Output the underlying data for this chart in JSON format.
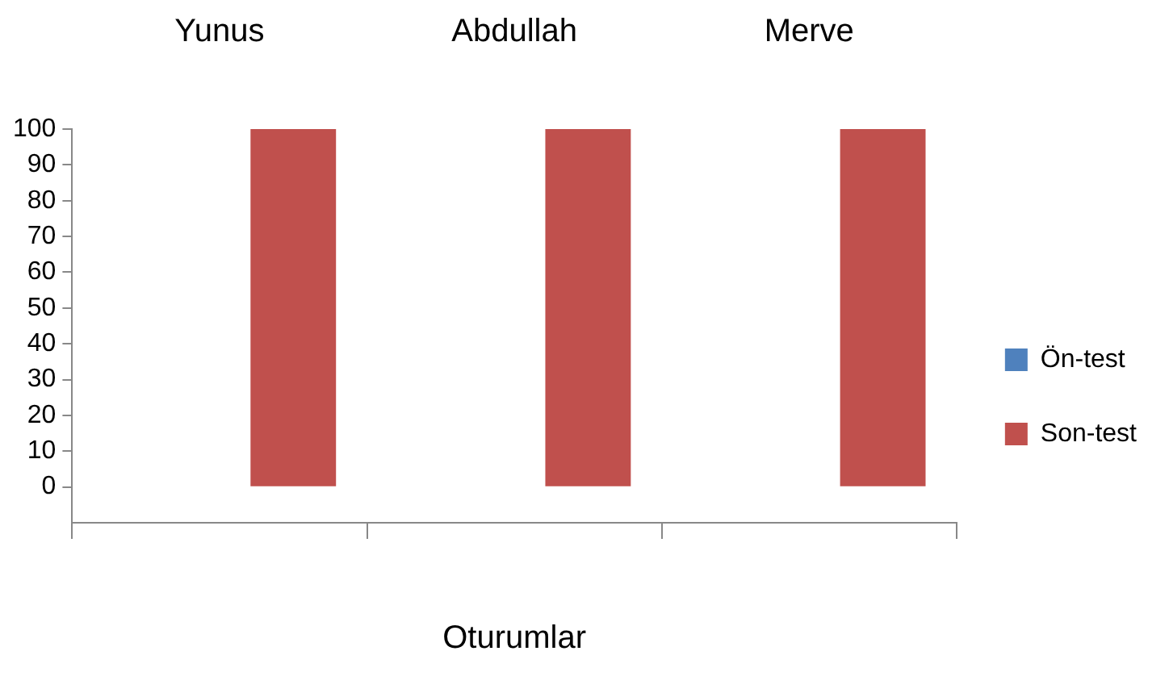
{
  "chart_data": {
    "type": "bar",
    "xlabel": "Oturumlar",
    "categories": [
      "Yunus",
      "Abdullah",
      "Merve"
    ],
    "series": [
      {
        "name": "Ön-test",
        "color": "#4f81bd",
        "values": [
          0,
          0,
          0
        ]
      },
      {
        "name": "Son-test",
        "color": "#c0504d",
        "values": [
          100,
          100,
          100
        ]
      }
    ],
    "ylim": [
      -10,
      100
    ],
    "yticks": [
      0,
      10,
      20,
      30,
      40,
      50,
      60,
      70,
      80,
      90,
      100
    ],
    "grid": false,
    "legend": "right"
  }
}
